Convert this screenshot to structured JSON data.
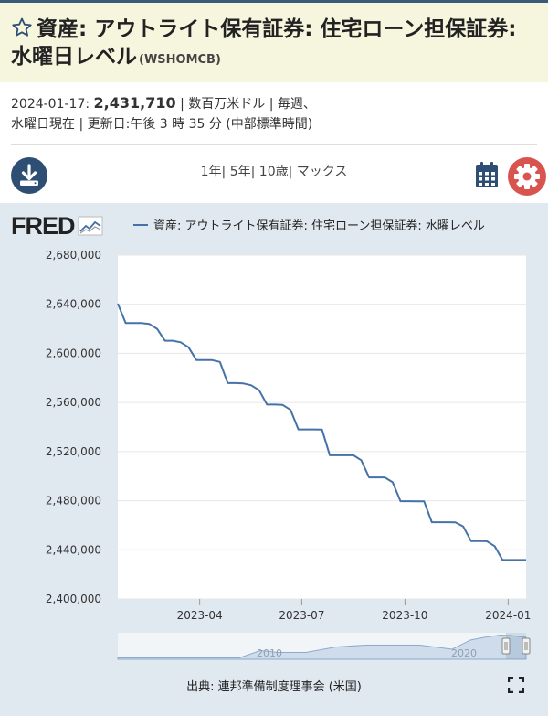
{
  "header": {
    "title": "資産: アウトライト保有証券: 住宅ローン担保証券: 水曜日レベル",
    "series_id": "(WSHOMCB)"
  },
  "meta": {
    "date": "2024-01-17:",
    "value": "2,431,710",
    "line1_rest": "| 数百万米ドル | 毎週、",
    "line2": "水曜日現在 | 更新日:午後 3 時 35 分 (中部標準時間)"
  },
  "toolbar": {
    "ranges": [
      "1年",
      "5年",
      "10歳",
      "マックス"
    ],
    "download_icon": "download-icon",
    "calendar_icon": "calendar-icon",
    "settings_icon": "gear-icon"
  },
  "chart_area": {
    "logo": "FRED",
    "legend_label": "資産: アウトライト保有証券: 住宅ローン担保証券: 水曜レベル",
    "source": "出典: 連邦準備制度理事会 (米国)",
    "navigator_labels": [
      "2010",
      "2020"
    ]
  },
  "colors": {
    "line": "#4572a7",
    "title_bg": "#f6f5de",
    "panel_bg": "#e1e9f0",
    "accent_blue": "#2f4e73",
    "accent_red": "#d9534f"
  },
  "chart_data": {
    "type": "line",
    "title": "",
    "xlabel": "",
    "ylabel": "",
    "ylim": [
      2400000,
      2680000
    ],
    "y_ticks": [
      2400000,
      2440000,
      2480000,
      2520000,
      2560000,
      2600000,
      2640000,
      2680000
    ],
    "y_tick_labels": [
      "2,400,000",
      "2,440,000",
      "2,480,000",
      "2,520,000",
      "2,560,000",
      "2,600,000",
      "2,640,000",
      "2,680,000"
    ],
    "x_range": [
      "2023-01-18",
      "2024-01-17"
    ],
    "x_ticks": [
      "2023-04-01",
      "2023-07-01",
      "2023-10-01",
      "2024-01-01"
    ],
    "x_tick_labels": [
      "2023-04",
      "2023-07",
      "2023-10",
      "2024-01"
    ],
    "grid": true,
    "series": [
      {
        "name": "資産: アウトライト保有証券: 住宅ローン担保証券: 水曜レベル",
        "x": [
          "2023-01-18",
          "2023-01-25",
          "2023-02-01",
          "2023-02-08",
          "2023-02-15",
          "2023-02-22",
          "2023-03-01",
          "2023-03-08",
          "2023-03-15",
          "2023-03-22",
          "2023-03-29",
          "2023-04-05",
          "2023-04-12",
          "2023-04-19",
          "2023-04-26",
          "2023-05-03",
          "2023-05-10",
          "2023-05-17",
          "2023-05-24",
          "2023-05-31",
          "2023-06-07",
          "2023-06-14",
          "2023-06-21",
          "2023-06-28",
          "2023-07-05",
          "2023-07-12",
          "2023-07-19",
          "2023-07-26",
          "2023-08-02",
          "2023-08-09",
          "2023-08-16",
          "2023-08-23",
          "2023-08-30",
          "2023-09-06",
          "2023-09-13",
          "2023-09-20",
          "2023-09-27",
          "2023-10-04",
          "2023-10-11",
          "2023-10-18",
          "2023-10-25",
          "2023-11-01",
          "2023-11-08",
          "2023-11-15",
          "2023-11-22",
          "2023-11-29",
          "2023-12-06",
          "2023-12-13",
          "2023-12-20",
          "2023-12-27",
          "2024-01-03",
          "2024-01-10",
          "2024-01-17"
        ],
        "y": [
          2640500,
          2624700,
          2624700,
          2624700,
          2624000,
          2620000,
          2610300,
          2610300,
          2609000,
          2605000,
          2594600,
          2594600,
          2594500,
          2593000,
          2575800,
          2575800,
          2575500,
          2574000,
          2570000,
          2558300,
          2558300,
          2558000,
          2554000,
          2538100,
          2538100,
          2538100,
          2538000,
          2517000,
          2517000,
          2517000,
          2517000,
          2513000,
          2499000,
          2499000,
          2499000,
          2495000,
          2479600,
          2479600,
          2479500,
          2479500,
          2462500,
          2462500,
          2462500,
          2462400,
          2459000,
          2447100,
          2447100,
          2447000,
          2443000,
          2431710,
          2431710,
          2431710,
          2431710
        ]
      }
    ]
  }
}
